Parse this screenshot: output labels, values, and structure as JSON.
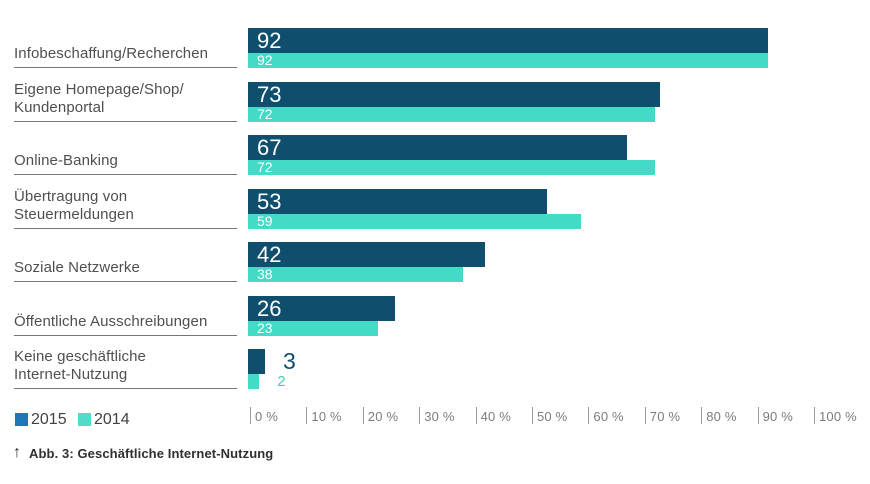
{
  "page": {
    "background": "#ffffff"
  },
  "legend": {
    "items": [
      {
        "label": "2015",
        "color": "#1d77b8"
      },
      {
        "label": "2014",
        "color": "#50dcc8"
      }
    ]
  },
  "caption": {
    "arrow_icon": "↑",
    "text": "Abb. 3: Geschäftliche Internet-Nutzung"
  },
  "chart_data": {
    "type": "bar",
    "orientation": "horizontal",
    "title": "Abb. 3: Geschäftliche Internet-Nutzung",
    "categories": [
      "Infobeschaffung/Recherchen",
      "Eigene Homepage/Shop/\nKundenportal",
      "Online-Banking",
      "Übertragung von\nSteuermeldungen",
      "Soziale Netzwerke",
      "Öffentliche Ausschreibungen",
      "Keine geschäftliche\nInternet-Nutzung"
    ],
    "series": [
      {
        "name": "2015",
        "color": "#0f4e6d",
        "text_color": "#0f4e6d",
        "values": [
          92,
          73,
          67,
          53,
          42,
          26,
          3
        ]
      },
      {
        "name": "2014",
        "color": "#43dac6",
        "text_color": "#3ecfbc",
        "values": [
          92,
          72,
          72,
          59,
          38,
          23,
          2
        ]
      }
    ],
    "value_unit": "%",
    "xlim": [
      0,
      100
    ],
    "x_tick_labels": [
      "0 %",
      "10 %",
      "20 %",
      "30 %",
      "40 %",
      "50 %",
      "60 %",
      "70 %",
      "80 %",
      "90 %",
      "100 %"
    ],
    "grid": false,
    "legend_position": "bottom-left"
  }
}
